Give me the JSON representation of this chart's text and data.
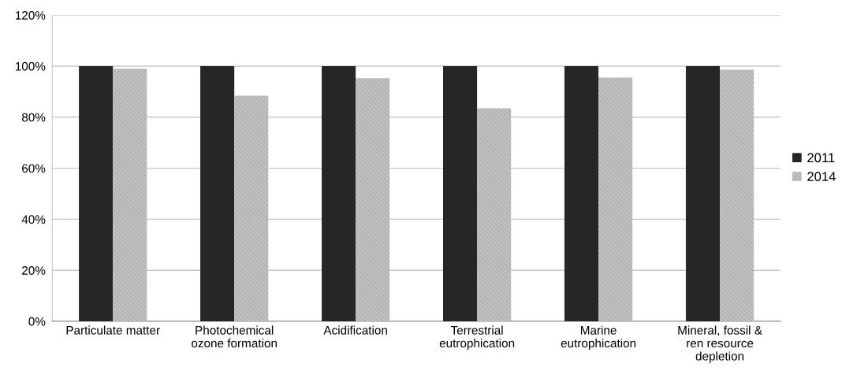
{
  "chart_data": {
    "type": "bar",
    "categories": [
      "Particulate matter",
      "Photochemical\nozone formation",
      "Acidification",
      "Terrestrial\neutrophication",
      "Marine\neutrophication",
      "Mineral, fossil &\nren resource\ndepletion"
    ],
    "series": [
      {
        "name": "2011",
        "color": "#262626",
        "values": [
          100,
          100,
          100,
          100,
          100,
          100
        ]
      },
      {
        "name": "2014",
        "color": "#c0c0c0",
        "values": [
          99.0,
          88.4,
          95.3,
          83.5,
          95.5,
          98.6
        ]
      }
    ],
    "ylim": [
      0,
      120
    ],
    "yticks": [
      {
        "value": 0,
        "label": "0%"
      },
      {
        "value": 20,
        "label": "20%"
      },
      {
        "value": 40,
        "label": "40%"
      },
      {
        "value": 60,
        "label": "60%"
      },
      {
        "value": 80,
        "label": "80%"
      },
      {
        "value": 100,
        "label": "100%"
      },
      {
        "value": 120,
        "label": "120%"
      }
    ],
    "grid": "y",
    "legend": "right"
  }
}
